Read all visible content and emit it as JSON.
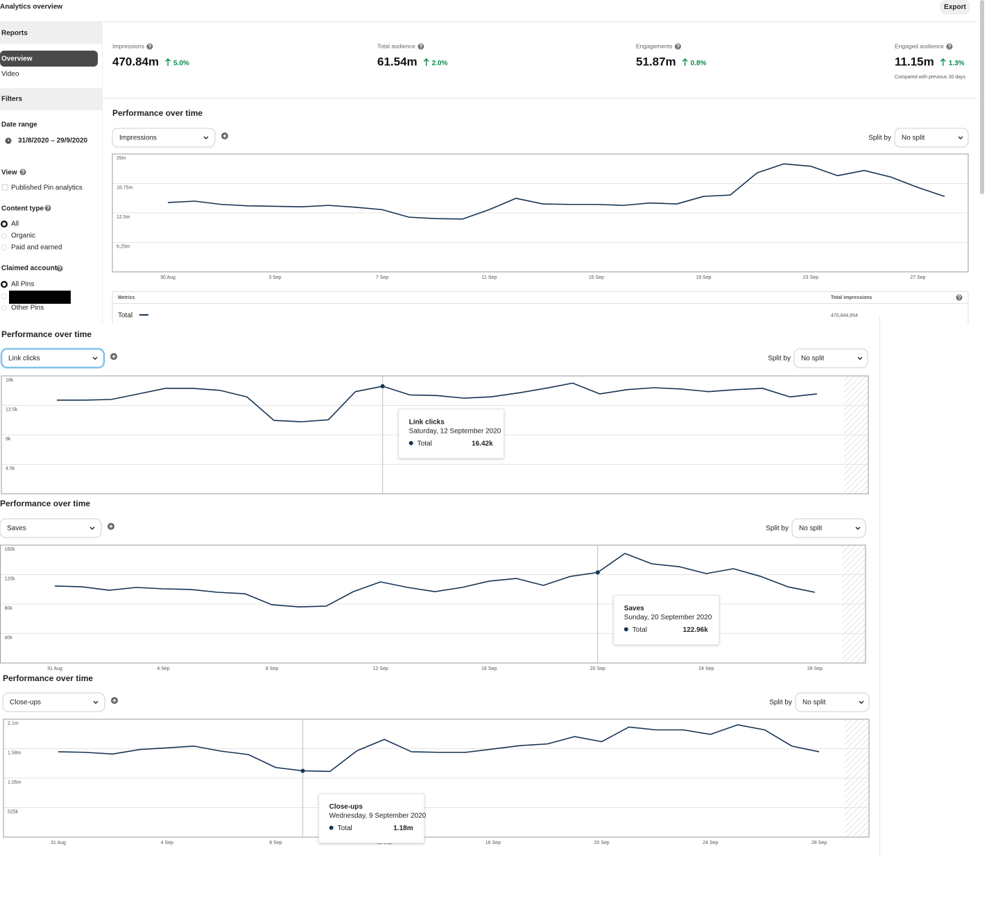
{
  "header": {
    "title": "Analytics overview",
    "export": "Export"
  },
  "sidebar": {
    "reports": "Reports",
    "nav": [
      "Overview",
      "Video"
    ],
    "filters": "Filters",
    "date_range_label": "Date range",
    "date_range": "31/8/2020 – 29/9/2020",
    "view": "View",
    "view_option": "Published Pin analytics",
    "content_type": "Content type",
    "content_options": [
      "All",
      "Organic",
      "Paid and earned"
    ],
    "claimed_account": "Claimed account",
    "account_options": [
      "All Pins",
      "Other Pins"
    ]
  },
  "kpis": [
    {
      "label": "Impressions",
      "value": "470.84m",
      "change": "5.0%"
    },
    {
      "label": "Total audience",
      "value": "61.54m",
      "change": "2.0%"
    },
    {
      "label": "Engagements",
      "value": "51.87m",
      "change": "0.8%"
    },
    {
      "label": "Engaged audience",
      "value": "11.15m",
      "change": "1.3%"
    }
  ],
  "compared_note": "Compared with previous 30 days",
  "chart_data": [
    {
      "type": "line",
      "title": "Performance over time",
      "metric": "Impressions",
      "split_label": "Split by",
      "split": "No split",
      "grid": true,
      "categories": [
        "30 Aug",
        null,
        null,
        null,
        "3 Sep",
        null,
        null,
        null,
        "7 Sep",
        null,
        null,
        null,
        "11 Sep",
        null,
        null,
        null,
        "15 Sep",
        null,
        null,
        null,
        "19 Sep",
        null,
        null,
        null,
        "23 Sep",
        null,
        null,
        null,
        "27 Sep",
        null
      ],
      "series": [
        {
          "name": "Total",
          "color": "#163352",
          "values": [
            14.7,
            15.0,
            14.3,
            14.0,
            13.9,
            13.8,
            14.1,
            13.7,
            13.2,
            11.6,
            11.3,
            11.2,
            13.2,
            15.6,
            14.4,
            14.3,
            14.3,
            14.1,
            14.6,
            14.4,
            16.0,
            16.3,
            21.0,
            22.9,
            22.4,
            20.4,
            21.5,
            20.1,
            17.9,
            16.0
          ]
        }
      ],
      "ylim": [
        0,
        25
      ],
      "yticks": [
        {
          "value": 6.25,
          "label": "6.25m"
        },
        {
          "value": 12.5,
          "label": "12.5m"
        },
        {
          "value": 18.75,
          "label": "18.75m"
        },
        {
          "value": 25,
          "label": "25m"
        }
      ],
      "table": {
        "header": [
          "Metrics",
          "Total impressions"
        ],
        "total": "470,844,654"
      }
    },
    {
      "type": "line",
      "title": "Performance over time",
      "metric": "Link clicks",
      "split_label": "Split by",
      "split": "No split",
      "grid": true,
      "series": [
        {
          "name": "Total",
          "color": "#163352",
          "values": [
            14.3,
            14.3,
            14.4,
            15.25,
            16.1,
            16.1,
            15.8,
            14.8,
            11.2,
            11.0,
            11.3,
            15.6,
            16.42,
            15.1,
            15.0,
            14.6,
            14.8,
            15.4,
            16.1,
            16.9,
            15.25,
            15.9,
            16.2,
            16.0,
            15.6,
            15.9,
            16.1,
            14.8,
            15.25
          ],
          "value_labels": [
            null,
            null,
            null,
            null,
            null,
            null,
            null,
            null,
            null,
            null,
            null,
            null,
            "16.42k",
            null,
            null,
            null,
            null,
            null,
            null,
            null,
            null,
            null,
            null,
            null,
            null,
            null,
            null,
            null,
            null
          ]
        }
      ],
      "tooltip_date": "Saturday, 12 September 2020",
      "ylim": [
        0,
        18
      ],
      "yticks": [
        {
          "value": 4.5,
          "label": "4.5k"
        },
        {
          "value": 9,
          "label": "9k"
        },
        {
          "value": 13.5,
          "label": "13.5k"
        },
        {
          "value": 18,
          "label": "18k"
        }
      ]
    },
    {
      "type": "line",
      "title": "Performance over time",
      "metric": "Saves",
      "split_label": "Split by",
      "split": "No split",
      "grid": true,
      "categories": [
        "31 Aug",
        null,
        null,
        null,
        "4 Sep",
        null,
        null,
        null,
        "8 Sep",
        null,
        null,
        null,
        "12 Sep",
        null,
        null,
        null,
        "16 Sep",
        null,
        null,
        null,
        "20 Sep",
        null,
        null,
        null,
        "24 Sep",
        null,
        null,
        null,
        "28 Sep"
      ],
      "series": [
        {
          "name": "Total",
          "color": "#163352",
          "values": [
            104.5,
            103.5,
            98.8,
            102.6,
            100.7,
            99.8,
            96.0,
            94.1,
            79.1,
            76.2,
            77.2,
            96.9,
            110.1,
            102.6,
            96.9,
            102.6,
            111.1,
            114.8,
            105.4,
            117.6,
            122.96,
            148.7,
            134.6,
            130.8,
            121.4,
            128.0,
            117.6,
            103.5,
            96.0
          ],
          "value_labels": [
            null,
            null,
            null,
            null,
            null,
            null,
            null,
            null,
            null,
            null,
            null,
            null,
            null,
            null,
            null,
            null,
            null,
            null,
            null,
            null,
            "122.96k",
            null,
            null,
            null,
            null,
            null,
            null,
            null,
            null
          ]
        }
      ],
      "tooltip_date": "Sunday, 20 September 2020",
      "ylim": [
        0,
        160
      ],
      "yticks": [
        {
          "value": 40,
          "label": "40k"
        },
        {
          "value": 80,
          "label": "80k"
        },
        {
          "value": 120,
          "label": "120k"
        },
        {
          "value": 160,
          "label": "160k"
        }
      ]
    },
    {
      "type": "line",
      "title": "Performance over time",
      "metric": "Close-ups",
      "split_label": "Split by",
      "split": "No split",
      "grid": true,
      "categories": [
        "31 Aug",
        null,
        null,
        null,
        "4 Sep",
        null,
        null,
        null,
        "8 Sep",
        null,
        null,
        null,
        "12 Sep",
        null,
        null,
        null,
        "16 Sep",
        null,
        null,
        null,
        "20 Sep",
        null,
        null,
        null,
        "24 Sep",
        null,
        null,
        null,
        "28 Sep"
      ],
      "series": [
        {
          "name": "Total",
          "color": "#163352",
          "values": [
            1.52,
            1.51,
            1.48,
            1.56,
            1.59,
            1.62,
            1.53,
            1.47,
            1.24,
            1.18,
            1.17,
            1.54,
            1.74,
            1.52,
            1.51,
            1.51,
            1.57,
            1.63,
            1.66,
            1.79,
            1.7,
            1.96,
            1.91,
            1.91,
            1.83,
            2.0,
            1.91,
            1.62,
            1.52
          ],
          "value_labels": [
            null,
            null,
            null,
            null,
            null,
            null,
            null,
            null,
            null,
            "1.18m",
            null,
            null,
            null,
            null,
            null,
            null,
            null,
            null,
            null,
            null,
            null,
            null,
            null,
            null,
            null,
            null,
            null,
            null,
            null
          ]
        }
      ],
      "tooltip_date": "Wednesday, 9 September 2020",
      "ylim": [
        0,
        2.1
      ],
      "yticks": [
        {
          "value": 0.525,
          "label": "525k"
        },
        {
          "value": 1.05,
          "label": "1.05m"
        },
        {
          "value": 1.575,
          "label": "1.58m"
        },
        {
          "value": 2.1,
          "label": "2.1m"
        }
      ]
    }
  ]
}
